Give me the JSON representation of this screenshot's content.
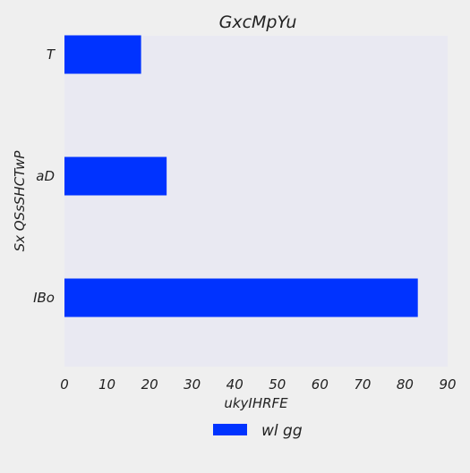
{
  "chart_data": {
    "type": "bar",
    "orientation": "horizontal",
    "title": "GxcMpYu",
    "xlabel": "ukyIHRFE",
    "ylabel": "Sx QSsSHCTwP",
    "categories": [
      "T",
      "aD",
      "IBo"
    ],
    "series": [
      {
        "name": "wl gg",
        "values": [
          18,
          24,
          83
        ],
        "color": "#0033ff"
      }
    ],
    "xlim": [
      0,
      90
    ],
    "xticks": [
      0,
      10,
      20,
      30,
      40,
      50,
      60,
      70,
      80,
      90
    ],
    "grid": false,
    "plot_background": "#e9e9f2",
    "legend": {
      "position": "bottom-center"
    }
  }
}
